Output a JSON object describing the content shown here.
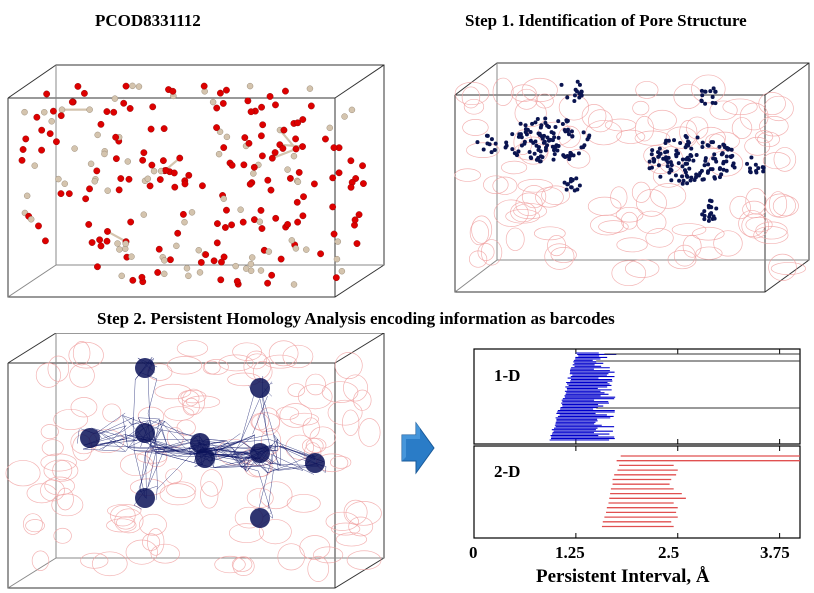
{
  "titles": {
    "structure": "PCOD8331112",
    "step1": "Step 1. Identification of Pore Structure",
    "step2": "Step 2. Persistent Homology Analysis encoding information as barcodes"
  },
  "chart_data": {
    "type": "barcode",
    "xlabel": "Persistent Interval, Å",
    "xlim": [
      0,
      4.0
    ],
    "xticks": [
      0,
      1.25,
      2.5,
      3.75
    ],
    "xtick_labels": [
      "0",
      "1.25",
      "2.5",
      "3.75"
    ],
    "panels": [
      {
        "label": "1-D",
        "color": "#0000cc",
        "short_bars": {
          "count": 60,
          "start_min": 0.93,
          "start_max": 1.27,
          "end_min": 1.45,
          "end_max": 1.75
        },
        "long_bars": [
          {
            "start": 1.6,
            "end": 4.0
          },
          {
            "start": 1.5,
            "end": 4.0
          },
          {
            "start": 1.5,
            "end": 4.0
          }
        ]
      },
      {
        "label": "2-D",
        "color": "#e05050",
        "bars": [
          {
            "start": 1.8,
            "end": 4.0
          },
          {
            "start": 1.75,
            "end": 4.0
          },
          {
            "start": 1.78,
            "end": 2.45
          },
          {
            "start": 1.76,
            "end": 2.5
          },
          {
            "start": 1.72,
            "end": 2.48
          },
          {
            "start": 1.7,
            "end": 2.42
          },
          {
            "start": 1.7,
            "end": 2.4
          },
          {
            "start": 1.68,
            "end": 2.45
          },
          {
            "start": 1.67,
            "end": 2.55
          },
          {
            "start": 1.66,
            "end": 2.6
          },
          {
            "start": 1.65,
            "end": 2.45
          },
          {
            "start": 1.63,
            "end": 2.5
          },
          {
            "start": 1.62,
            "end": 2.48
          },
          {
            "start": 1.6,
            "end": 2.5
          },
          {
            "start": 1.58,
            "end": 2.42
          },
          {
            "start": 1.57,
            "end": 2.45
          }
        ]
      }
    ]
  },
  "colors": {
    "oxygen": "#dd0000",
    "silicon": "#d4c4ae",
    "pore_points": "#0a1450",
    "faint_framework": "#f0a0a0",
    "arrow": "#2a7cc7"
  }
}
